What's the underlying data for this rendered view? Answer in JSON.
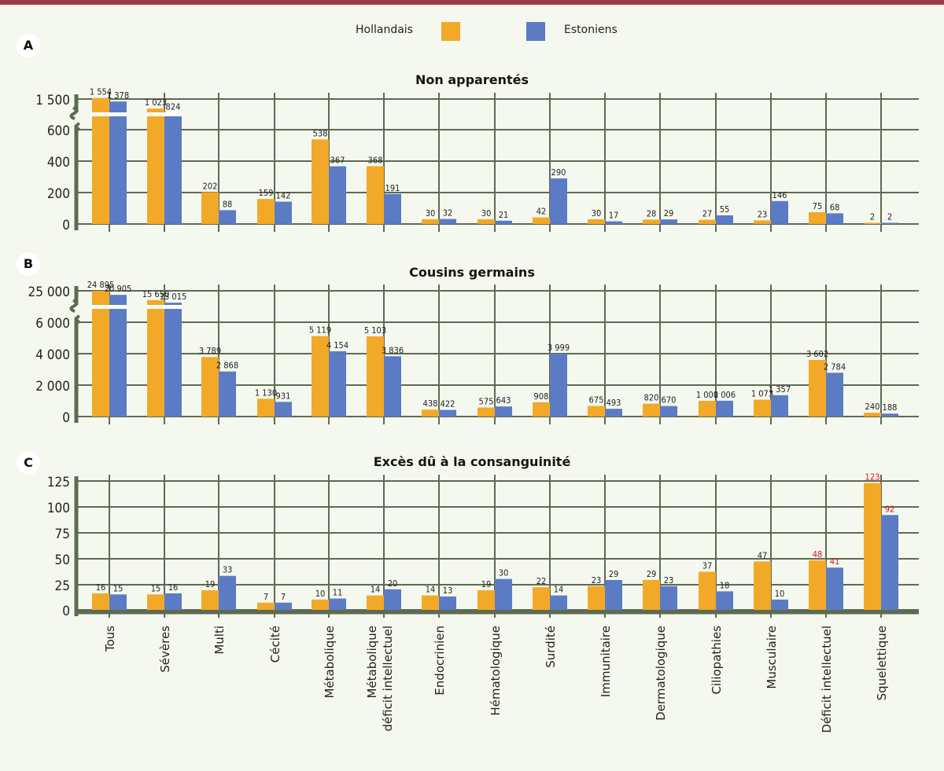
{
  "legend": {
    "series": [
      {
        "name": "Hollandais",
        "color": "#f2a928"
      },
      {
        "name": "Estoniens",
        "color": "#5b7cc4"
      }
    ]
  },
  "colors": {
    "grid": "#5e6b52",
    "axis": "#5e6b52",
    "highlight_label": "#d6141e",
    "background": "#f4f8ee",
    "topbar": "#9b3a4a"
  },
  "chart_data": [
    {
      "panel": "A",
      "type": "bar",
      "title": "Non apparentés",
      "categories": [
        "Tous",
        "Sévères",
        "Multi",
        "Cécité",
        "Métabolique",
        "Métabolique déficit intellectuel",
        "Endocrinien",
        "Hématologique",
        "Surdité",
        "Immunitaire",
        "Dermatologique",
        "Ciliopathies",
        "Musculaire",
        "Déficit intellectuel",
        "Squelettique"
      ],
      "series": [
        {
          "name": "Hollandais",
          "values": [
            1554,
            1023,
            202,
            159,
            538,
            368,
            30,
            30,
            42,
            30,
            28,
            27,
            23,
            75,
            2
          ]
        },
        {
          "name": "Estoniens",
          "values": [
            1378,
            824,
            88,
            142,
            367,
            191,
            32,
            21,
            290,
            17,
            29,
            55,
            146,
            68,
            2
          ]
        }
      ],
      "yticks": [
        "0",
        "200",
        "400",
        "600",
        "1 500"
      ],
      "ytick_values": [
        0,
        200,
        400,
        600,
        1500
      ],
      "axis_break": "between 600 and 1500",
      "ylim": [
        0,
        1554
      ],
      "grid": true,
      "legend": "top-center"
    },
    {
      "panel": "B",
      "type": "bar",
      "title": "Cousins germains",
      "categories": [
        "Tous",
        "Sévères",
        "Multi",
        "Cécité",
        "Métabolique",
        "Métabolique déficit intellectuel",
        "Endocrinien",
        "Hématologique",
        "Surdité",
        "Immunitaire",
        "Dermatologique",
        "Ciliopathies",
        "Musculaire",
        "Déficit intellectuel",
        "Squelettique"
      ],
      "series": [
        {
          "name": "Hollandais",
          "values": [
            24895,
            15650,
            3789,
            1130,
            5119,
            5103,
            438,
            575,
            908,
            675,
            820,
            1000,
            1073,
            3602,
            240
          ]
        },
        {
          "name": "Estoniens",
          "values": [
            20905,
            13015,
            2868,
            931,
            4154,
            3836,
            422,
            643,
            3999,
            493,
            670,
            1006,
            1357,
            2784,
            188
          ]
        }
      ],
      "value_labels": {
        "Hollandais": [
          "24 895",
          "15 650",
          "3 789",
          "1 130",
          "5 119",
          "5 103",
          "438",
          "575",
          "908",
          "675",
          "820",
          "1 000",
          "1 073",
          "3 602",
          "240"
        ],
        "Estoniens": [
          "20 905",
          "13 015",
          "2 868",
          "931",
          "4 154",
          "3 836",
          "422",
          "643",
          "3 999",
          "493",
          "670",
          "1 006",
          "1 357",
          "2 784",
          "188"
        ]
      },
      "yticks": [
        "0",
        "2 000",
        "4 000",
        "6 000",
        "25 000"
      ],
      "ytick_values": [
        0,
        2000,
        4000,
        6000,
        25000
      ],
      "axis_break": "between 6000 and 25000",
      "grid": true
    },
    {
      "panel": "C",
      "type": "bar",
      "title": "Excès dû à la consanguinité",
      "categories": [
        "Tous",
        "Sévères",
        "Multi",
        "Cécité",
        "Métabolique",
        "Métabolique déficit intellectuel",
        "Endocrinien",
        "Hématologique",
        "Surdité",
        "Immunitaire",
        "Dermatologique",
        "Ciliopathies",
        "Musculaire",
        "Déficit intellectuel",
        "Squelettique"
      ],
      "series": [
        {
          "name": "Hollandais",
          "values": [
            16,
            15,
            19,
            7,
            10,
            14,
            14,
            19,
            22,
            23,
            29,
            37,
            47,
            48,
            123
          ]
        },
        {
          "name": "Estoniens",
          "values": [
            15,
            16,
            33,
            7,
            11,
            20,
            13,
            30,
            14,
            29,
            23,
            18,
            10,
            41,
            92
          ]
        }
      ],
      "highlighted_categories": [
        "Déficit intellectuel",
        "Squelettique"
      ],
      "yticks": [
        "0",
        "25",
        "50",
        "75",
        "100",
        "125"
      ],
      "ytick_values": [
        0,
        25,
        50,
        75,
        100,
        125
      ],
      "ylim": [
        0,
        125
      ],
      "grid": true
    }
  ],
  "x_labels": [
    [
      "Tous"
    ],
    [
      "Sévères"
    ],
    [
      "Multi"
    ],
    [
      "Cécité"
    ],
    [
      "Métabolique"
    ],
    [
      "Métabolique",
      "déficit intellectuel"
    ],
    [
      "Endocrinien"
    ],
    [
      "Hématologique"
    ],
    [
      "Surdité"
    ],
    [
      "Immunitaire"
    ],
    [
      "Dermatologique"
    ],
    [
      "Ciliopathies"
    ],
    [
      "Musculaire"
    ],
    [
      "Déficit intellectuel"
    ],
    [
      "Squelettique"
    ]
  ],
  "panels": {
    "A": {
      "letter": "A",
      "title": "Non apparentés"
    },
    "B": {
      "letter": "B",
      "title": "Cousins germains"
    },
    "C": {
      "letter": "C",
      "title": "Excès dû à la consanguinité"
    }
  }
}
